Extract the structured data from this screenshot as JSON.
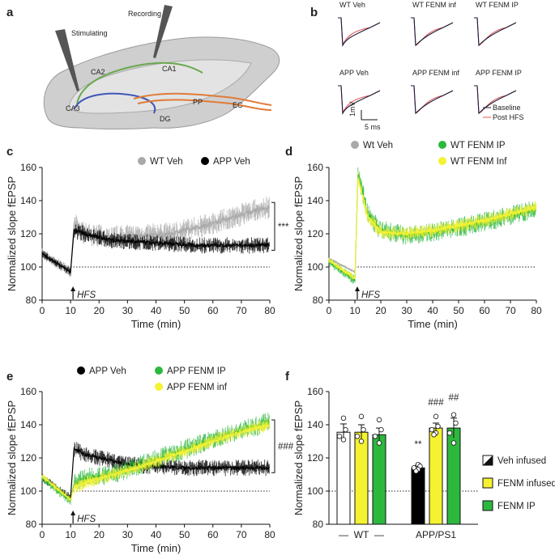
{
  "panel_labels": {
    "a": "a",
    "b": "b",
    "c": "c",
    "d": "d",
    "e": "e",
    "f": "f"
  },
  "schematic": {
    "stimulating": "Stimulating",
    "recording": "Recording",
    "regions": {
      "ca1": "CA1",
      "ca2": "CA2",
      "ca3": "CA3",
      "dg": "DG",
      "pp": "PP",
      "ec": "EC"
    },
    "colors": {
      "brain": "#c9c9c9",
      "ca1": "#6aa84f",
      "ca3": "#3d55b8",
      "pp": "#e07b39"
    }
  },
  "traces": {
    "labels": [
      "WT Veh",
      "WT FENM inf",
      "WT FENM IP",
      "APP Veh",
      "APP FENM inf",
      "APP FENM IP"
    ],
    "legend": {
      "baseline": "Baseline",
      "post": "Post HFS"
    },
    "scale_v": "1mV",
    "scale_t": "5 ms",
    "colors": {
      "baseline": "#1b1b3a",
      "post": "#e05555"
    }
  },
  "hfs_label": "HFS",
  "chart_data": [
    {
      "id": "c",
      "type": "line",
      "ylabel": "Normalized slope fEPSP",
      "xlabel": "Time (min)",
      "xlim": [
        0,
        80
      ],
      "ylim": [
        80,
        160
      ],
      "xticks": [
        0,
        10,
        20,
        30,
        40,
        50,
        60,
        70,
        80
      ],
      "yticks": [
        80,
        100,
        120,
        140,
        160
      ],
      "baseline": 100,
      "hfs_time": 10,
      "series": [
        {
          "name": "WT Veh",
          "color": "#a9a9a9",
          "points": [
            [
              0,
              108
            ],
            [
              10,
              97
            ],
            [
              11,
              126
            ],
            [
              15,
              120
            ],
            [
              25,
              118
            ],
            [
              35,
              119
            ],
            [
              45,
              120
            ],
            [
              55,
              124
            ],
            [
              65,
              129
            ],
            [
              75,
              134
            ],
            [
              80,
              136
            ]
          ],
          "noise": 7
        },
        {
          "name": "APP Veh",
          "color": "#000000",
          "points": [
            [
              0,
              108
            ],
            [
              10,
              97
            ],
            [
              11,
              122
            ],
            [
              15,
              120
            ],
            [
              25,
              116
            ],
            [
              35,
              115
            ],
            [
              45,
              114
            ],
            [
              55,
              113
            ],
            [
              65,
              113
            ],
            [
              75,
              113
            ],
            [
              80,
              113
            ]
          ],
          "noise": 5
        }
      ],
      "significance": "***"
    },
    {
      "id": "d",
      "type": "line",
      "ylabel": "Normalized slope fEPSP",
      "xlabel": "Time (min)",
      "xlim": [
        0,
        80
      ],
      "ylim": [
        80,
        160
      ],
      "xticks": [
        0,
        10,
        20,
        30,
        40,
        50,
        60,
        70,
        80
      ],
      "yticks": [
        80,
        100,
        120,
        140,
        160
      ],
      "baseline": 100,
      "hfs_time": 10,
      "series": [
        {
          "name": "Wt Veh",
          "color": "#a9a9a9",
          "points": [
            [
              0,
              105
            ],
            [
              10,
              97
            ],
            [
              11,
              104
            ],
            [
              80,
              104
            ]
          ],
          "noise": 2,
          "end": 11
        },
        {
          "name": "WT FENM IP",
          "color": "#2db83d",
          "points": [
            [
              0,
              103
            ],
            [
              10,
              92
            ],
            [
              11,
              158
            ],
            [
              15,
              132
            ],
            [
              20,
              122
            ],
            [
              30,
              119
            ],
            [
              40,
              121
            ],
            [
              50,
              124
            ],
            [
              60,
              127
            ],
            [
              70,
              131
            ],
            [
              80,
              135
            ]
          ],
          "noise": 6
        },
        {
          "name": "WT FENM Inf",
          "color": "#f5f232",
          "points": [
            [
              0,
              104
            ],
            [
              10,
              93
            ],
            [
              11,
              155
            ],
            [
              15,
              130
            ],
            [
              20,
              121
            ],
            [
              30,
              120
            ],
            [
              40,
              122
            ],
            [
              50,
              125
            ],
            [
              60,
              128
            ],
            [
              70,
              132
            ],
            [
              80,
              136
            ]
          ],
          "noise": 4
        }
      ]
    },
    {
      "id": "e",
      "type": "line",
      "ylabel": "Normalized slope fEPSP",
      "xlabel": "Time (min)",
      "xlim": [
        0,
        80
      ],
      "ylim": [
        80,
        160
      ],
      "xticks": [
        0,
        10,
        20,
        30,
        40,
        50,
        60,
        70,
        80
      ],
      "yticks": [
        80,
        100,
        120,
        140,
        160
      ],
      "baseline": 100,
      "hfs_time": 10,
      "series": [
        {
          "name": "APP Veh",
          "color": "#000000",
          "points": [
            [
              0,
              108
            ],
            [
              10,
              96
            ],
            [
              11,
              126
            ],
            [
              15,
              122
            ],
            [
              20,
              120
            ],
            [
              30,
              116
            ],
            [
              40,
              115
            ],
            [
              50,
              114
            ],
            [
              60,
              114
            ],
            [
              70,
              114
            ],
            [
              80,
              114
            ]
          ],
          "noise": 5
        },
        {
          "name": "APP FENM IP",
          "color": "#2db83d",
          "points": [
            [
              0,
              108
            ],
            [
              10,
              94
            ],
            [
              11,
              104
            ],
            [
              15,
              108
            ],
            [
              25,
              110
            ],
            [
              35,
              116
            ],
            [
              45,
              122
            ],
            [
              55,
              128
            ],
            [
              65,
              134
            ],
            [
              75,
              139
            ],
            [
              80,
              142
            ]
          ],
          "noise": 6
        },
        {
          "name": "APP FENM inf",
          "color": "#f5f232",
          "points": [
            [
              0,
              109
            ],
            [
              10,
              95
            ],
            [
              11,
              102
            ],
            [
              15,
              105
            ],
            [
              25,
              110
            ],
            [
              35,
              115
            ],
            [
              45,
              121
            ],
            [
              55,
              127
            ],
            [
              65,
              133
            ],
            [
              75,
              138
            ],
            [
              80,
              140
            ]
          ],
          "noise": 4
        }
      ],
      "significance": "###"
    },
    {
      "id": "f",
      "type": "bar",
      "ylabel": "Normalized slope fEPSP",
      "ylim": [
        80,
        160
      ],
      "yticks": [
        80,
        100,
        120,
        140,
        160
      ],
      "baseline": 100,
      "groups": [
        {
          "name": "WT",
          "dash_left": "—",
          "dash_right": "—",
          "bars": [
            {
              "series": "Veh infused",
              "value": 135.5,
              "err": 5,
              "color": "#ffffff",
              "points": [
                144,
                137,
                133,
                131
              ]
            },
            {
              "series": "FENM infused",
              "value": 135.5,
              "err": 4.5,
              "color": "#f5f232",
              "points": [
                145,
                137,
                133,
                130
              ]
            },
            {
              "series": "FENM IP",
              "value": 134,
              "err": 4,
              "color": "#2db83d",
              "points": [
                143,
                137,
                133,
                129
              ]
            }
          ]
        },
        {
          "name": "APP/PS1",
          "bars": [
            {
              "series": "Veh infused",
              "value": 114,
              "err": 1.5,
              "color": "#000000",
              "points": [
                116,
                115,
                114,
                113,
                112
              ],
              "sig": "**"
            },
            {
              "series": "FENM infused",
              "value": 138,
              "err": 3,
              "color": "#f5f232",
              "points": [
                145,
                139,
                137,
                135,
                134
              ],
              "sig": "###"
            },
            {
              "series": "FENM IP",
              "value": 138,
              "err": 6,
              "color": "#2db83d",
              "points": [
                146,
                141,
                135,
                129
              ],
              "sig": "##"
            }
          ]
        }
      ],
      "legend": [
        {
          "label": "Veh infused",
          "color": "split"
        },
        {
          "label": "FENM infused",
          "color": "#f5f232"
        },
        {
          "label": "FENM IP",
          "color": "#2db83d"
        }
      ]
    }
  ]
}
